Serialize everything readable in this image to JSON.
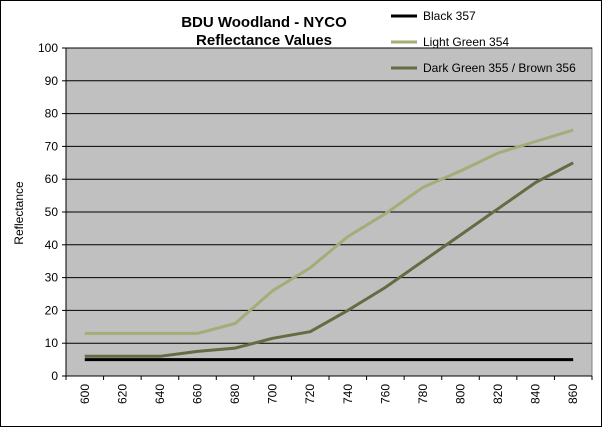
{
  "chart_data": {
    "type": "line",
    "title": [
      "BDU Woodland - NYCO",
      "Reflectance Values"
    ],
    "xlabel": "",
    "ylabel": "Reflectance",
    "x": [
      600,
      620,
      640,
      660,
      680,
      700,
      720,
      740,
      760,
      780,
      800,
      820,
      840,
      860
    ],
    "ylim": [
      0,
      100
    ],
    "yticks": [
      0,
      10,
      20,
      30,
      40,
      50,
      60,
      70,
      80,
      90,
      100
    ],
    "grid": true,
    "legend_position": "top-right",
    "series": [
      {
        "name": "Black 357",
        "color": "#000000",
        "values": [
          5,
          5,
          5,
          5,
          5,
          5,
          5,
          5,
          5,
          5,
          5,
          5,
          5,
          5
        ]
      },
      {
        "name": "Light Green 354",
        "color": "#a6ab78",
        "values": [
          13,
          13,
          13,
          13,
          16,
          26,
          33,
          42.5,
          49.5,
          57.5,
          62.5,
          68,
          71.5,
          75
        ]
      },
      {
        "name": "Dark Green 355 / Brown 356",
        "color": "#666b43",
        "values": [
          6,
          6,
          6,
          7.5,
          8.5,
          11.5,
          13.5,
          20,
          27,
          35,
          43,
          51,
          59,
          65
        ]
      }
    ]
  }
}
